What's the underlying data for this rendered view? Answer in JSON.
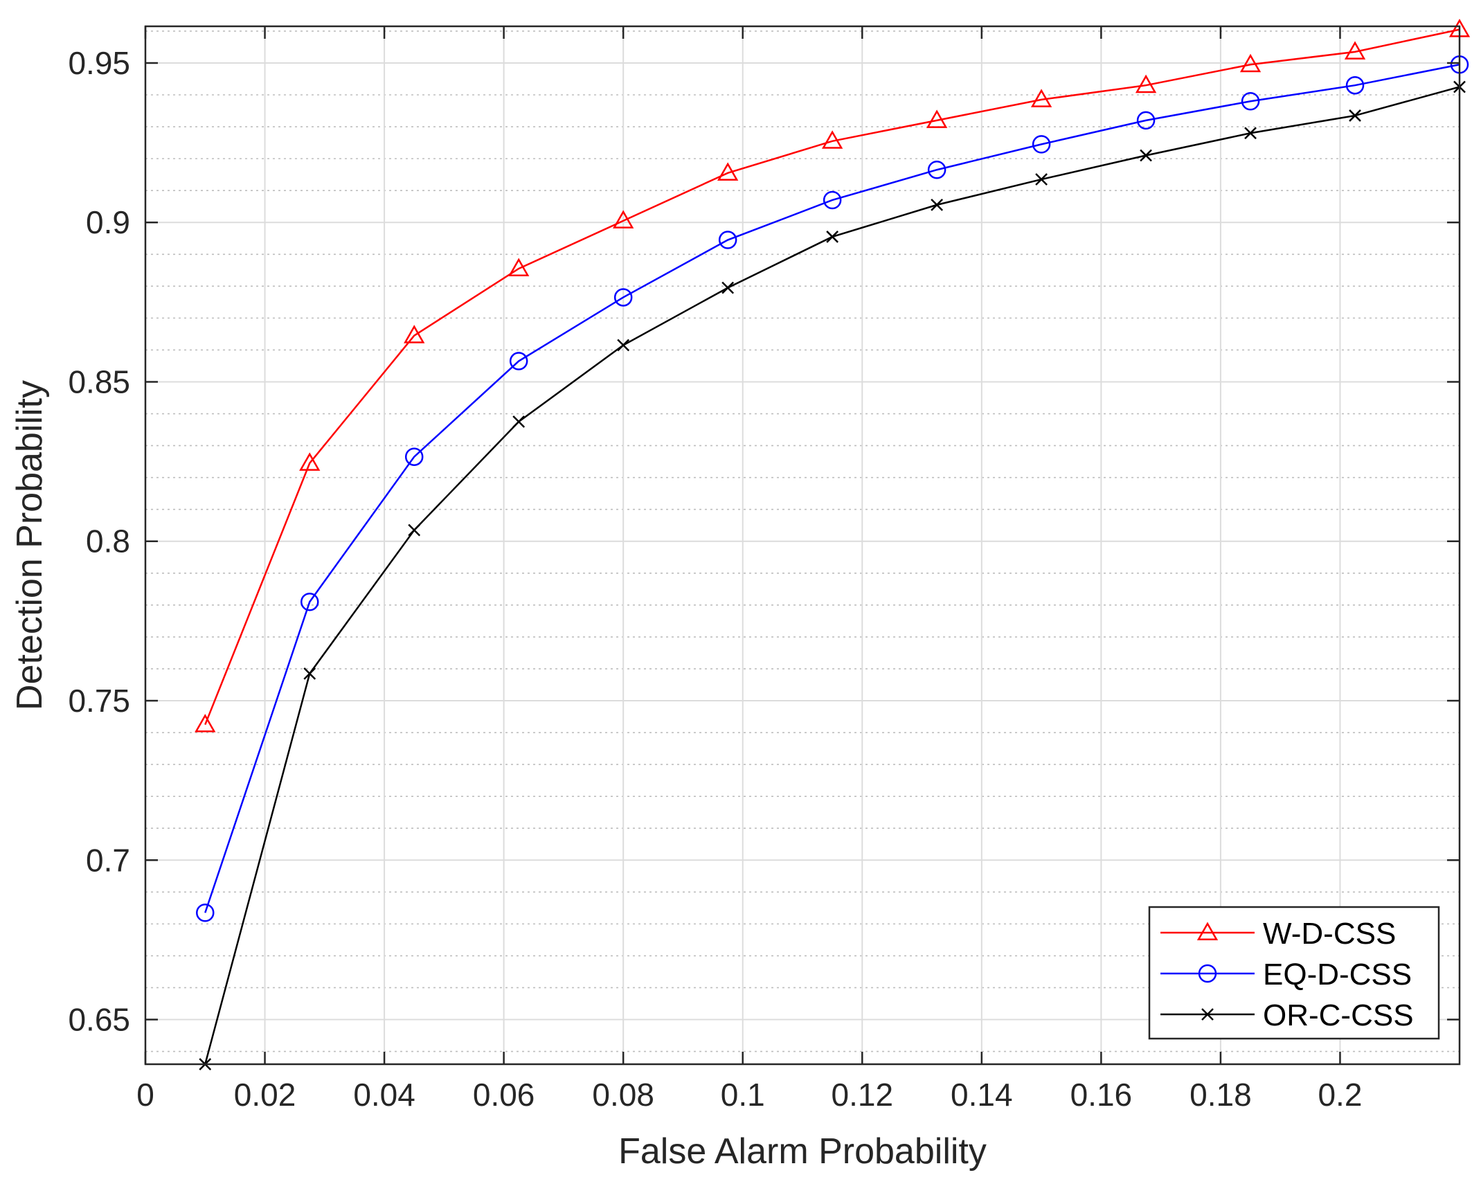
{
  "chart_data": {
    "type": "line",
    "title": "",
    "xlabel": "False Alarm Probability",
    "ylabel": "Detection Probability",
    "xlim": [
      0,
      0.22
    ],
    "ylim": [
      0.636,
      0.9615
    ],
    "xscale": "linear",
    "yscale": "linear",
    "grid": true,
    "minor_grid_y": true,
    "legend_position": "bottom-right",
    "xticks": [
      0,
      0.02,
      0.04,
      0.06,
      0.08,
      0.1,
      0.12,
      0.14,
      0.16,
      0.18,
      0.2
    ],
    "xtick_labels": [
      "0",
      "0.02",
      "0.04",
      "0.06",
      "0.08",
      "0.1",
      "0.12",
      "0.14",
      "0.16",
      "0.18",
      "0.2"
    ],
    "yticks": [
      0.65,
      0.7,
      0.75,
      0.8,
      0.85,
      0.9,
      0.95
    ],
    "ytick_labels": [
      "0.65",
      "0.7",
      "0.75",
      "0.8",
      "0.85",
      "0.9",
      "0.95"
    ],
    "x": [
      0.01,
      0.0275,
      0.045,
      0.0625,
      0.08,
      0.0975,
      0.115,
      0.1325,
      0.15,
      0.1675,
      0.185,
      0.2025,
      0.22
    ],
    "series": [
      {
        "name": "W-D-CSS",
        "color": "#ff0000",
        "marker": "triangle",
        "values": [
          0.7425,
          0.8245,
          0.8645,
          0.8855,
          0.9005,
          0.9155,
          0.9255,
          0.932,
          0.9385,
          0.943,
          0.9495,
          0.9535,
          0.9605
        ]
      },
      {
        "name": "EQ-D-CSS",
        "color": "#0000ff",
        "marker": "circle",
        "values": [
          0.6835,
          0.781,
          0.8265,
          0.8565,
          0.8765,
          0.8945,
          0.907,
          0.9165,
          0.9245,
          0.932,
          0.938,
          0.943,
          0.9495
        ]
      },
      {
        "name": "OR-C-CSS",
        "color": "#000000",
        "marker": "x",
        "values": [
          0.636,
          0.7585,
          0.8035,
          0.8375,
          0.8615,
          0.8795,
          0.8955,
          0.9055,
          0.9135,
          0.921,
          0.928,
          0.9335,
          0.9425
        ]
      }
    ]
  }
}
